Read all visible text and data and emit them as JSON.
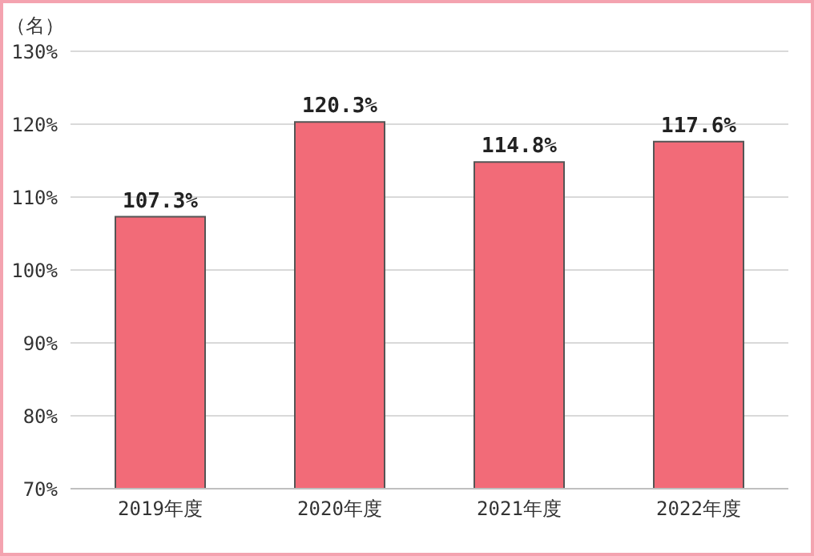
{
  "chart_data": {
    "type": "bar",
    "ylabel": "（名）",
    "categories": [
      "2019年度",
      "2020年度",
      "2021年度",
      "2022年度"
    ],
    "values": [
      107.3,
      120.3,
      114.8,
      117.6
    ],
    "value_labels": [
      "107.3%",
      "120.3%",
      "114.8%",
      "117.6%"
    ],
    "color": "#f26b78",
    "ylim": [
      70,
      130
    ],
    "yticks": [
      {
        "value": 70,
        "label": "70%"
      },
      {
        "value": 80,
        "label": "80%"
      },
      {
        "value": 90,
        "label": "90%"
      },
      {
        "value": 100,
        "label": "100%"
      },
      {
        "value": 110,
        "label": "110%"
      },
      {
        "value": 120,
        "label": "120%"
      },
      {
        "value": 130,
        "label": "130%"
      }
    ],
    "grid": "y"
  }
}
